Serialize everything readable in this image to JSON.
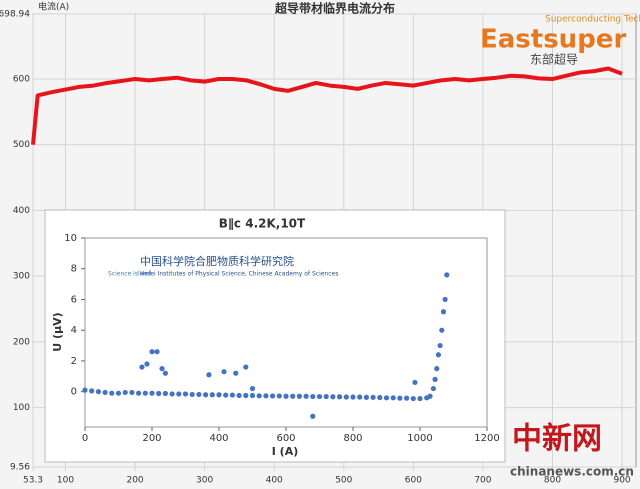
{
  "chart_data": [
    {
      "type": "line",
      "title": "超导带材临界电流分布",
      "y_label": "电流(A)",
      "xlim": [
        53.3,
        920
      ],
      "xticks": [
        53.3,
        100,
        200,
        300,
        400,
        500,
        600,
        700,
        800,
        900
      ],
      "ylim": [
        9.56,
        698.94
      ],
      "yticks": [
        9.56,
        100,
        200,
        300,
        400,
        500,
        600,
        698.94
      ],
      "grid": true,
      "series": [
        {
          "color": "#e8141b",
          "x": [
            53.3,
            60,
            80,
            100,
            120,
            140,
            160,
            180,
            200,
            220,
            240,
            260,
            280,
            300,
            320,
            340,
            360,
            380,
            400,
            420,
            440,
            460,
            480,
            500,
            520,
            540,
            560,
            580,
            600,
            620,
            640,
            660,
            680,
            700,
            720,
            740,
            760,
            780,
            800,
            820,
            840,
            860,
            880,
            900
          ],
          "values": [
            500,
            575,
            580,
            584,
            588,
            590,
            594,
            597,
            600,
            598,
            600,
            602,
            598,
            596,
            600,
            600,
            598,
            592,
            585,
            582,
            588,
            594,
            590,
            588,
            585,
            590,
            594,
            592,
            590,
            594,
            598,
            600,
            598,
            600,
            602,
            605,
            604,
            601,
            600,
            605,
            610,
            612,
            616,
            608
          ]
        }
      ]
    },
    {
      "type": "scatter",
      "title": "B∥c  4.2K,10T",
      "x_label": "I (A)",
      "y_label": "U (μV)",
      "xlim": [
        0,
        1200
      ],
      "xticks": [
        0,
        200,
        400,
        600,
        800,
        1000,
        1200
      ],
      "ylim": [
        -2.3,
        10
      ],
      "yticks": [
        0,
        2,
        4,
        6,
        8,
        10
      ],
      "series": [
        {
          "color": "#4472c4",
          "x": [
            0,
            20,
            40,
            60,
            80,
            100,
            120,
            140,
            160,
            180,
            200,
            220,
            240,
            260,
            280,
            300,
            320,
            340,
            360,
            380,
            400,
            420,
            440,
            460,
            480,
            500,
            520,
            540,
            560,
            580,
            600,
            620,
            640,
            660,
            680,
            700,
            720,
            740,
            760,
            780,
            800,
            820,
            840,
            860,
            880,
            900,
            920,
            940,
            960,
            980,
            1000,
            1020,
            170,
            185,
            200,
            215,
            230,
            240,
            370,
            415,
            450,
            480,
            500,
            680,
            985,
            1030,
            1040,
            1045,
            1050,
            1055,
            1060,
            1065,
            1070,
            1075,
            1080
          ],
          "values": [
            0.1,
            0.05,
            0.0,
            -0.05,
            -0.1,
            -0.1,
            -0.05,
            -0.05,
            -0.1,
            -0.1,
            -0.1,
            -0.12,
            -0.12,
            -0.15,
            -0.15,
            -0.15,
            -0.18,
            -0.18,
            -0.2,
            -0.2,
            -0.2,
            -0.22,
            -0.22,
            -0.25,
            -0.25,
            -0.25,
            -0.27,
            -0.27,
            -0.28,
            -0.28,
            -0.3,
            -0.3,
            -0.3,
            -0.3,
            -0.32,
            -0.32,
            -0.32,
            -0.33,
            -0.33,
            -0.35,
            -0.35,
            -0.35,
            -0.37,
            -0.37,
            -0.38,
            -0.4,
            -0.4,
            -0.42,
            -0.42,
            -0.45,
            -0.45,
            -0.4,
            1.6,
            1.8,
            2.6,
            2.6,
            1.5,
            1.2,
            1.1,
            1.3,
            1.2,
            1.6,
            0.2,
            -1.6,
            0.6,
            -0.3,
            0.2,
            0.8,
            1.5,
            2.4,
            3.0,
            4.0,
            5.2,
            6.0,
            7.6
          ]
        }
      ]
    }
  ],
  "logo": {
    "tagline": "Superconducting Tech",
    "name": "Eastsuper",
    "subtitle": "东部超导"
  },
  "inset_logo": {
    "emblem": "Science Island",
    "name": "中国科学院合肥物质科学研究院",
    "english": "Hefei Institutes of Physical Science, Chinese Academy of Sciences"
  },
  "watermark": {
    "name": "中新网",
    "site": "chinanews.com.cn"
  }
}
